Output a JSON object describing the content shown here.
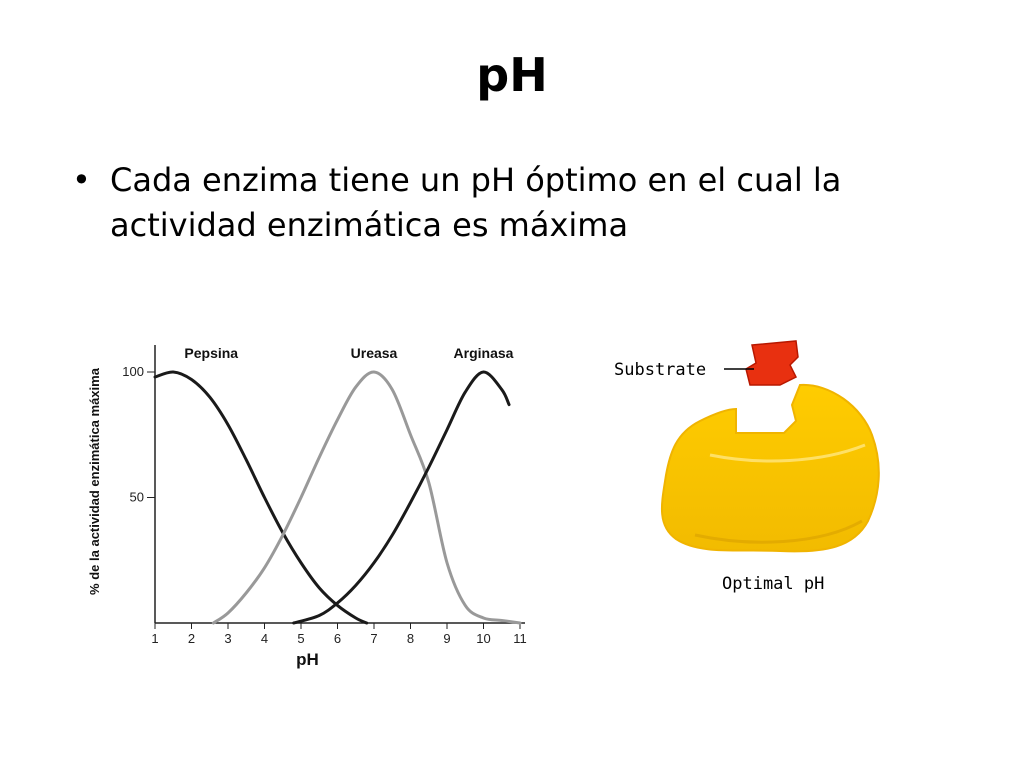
{
  "slide": {
    "title": "pH",
    "bullet_symbol": "•",
    "bullet_text": "Cada enzima tiene un pH óptimo en el cual la actividad enzimática es máxima"
  },
  "chart_data": {
    "type": "line",
    "xlabel": "pH",
    "ylabel": "% de la actividad enzimática máxima",
    "x_ticks": [
      1,
      2,
      3,
      4,
      5,
      6,
      7,
      8,
      9,
      10,
      11
    ],
    "y_ticks": [
      50,
      100
    ],
    "xlim": [
      1,
      11
    ],
    "ylim": [
      0,
      100
    ],
    "grid": false,
    "series": [
      {
        "name": "Pepsina",
        "color": "#1a1a1a",
        "x": [
          1.0,
          1.5,
          2.0,
          2.5,
          3.0,
          3.5,
          4.0,
          4.5,
          5.0,
          5.5,
          6.0,
          6.5,
          6.8
        ],
        "y": [
          98,
          100,
          97,
          90,
          79,
          65,
          50,
          36,
          24,
          14,
          7,
          2,
          0
        ]
      },
      {
        "name": "Ureasa",
        "color": "#999999",
        "x": [
          2.6,
          3.0,
          3.5,
          4.0,
          4.5,
          5.0,
          5.5,
          6.0,
          6.5,
          7.0,
          7.5,
          8.0,
          8.5,
          9.0,
          9.5,
          10.0,
          10.5,
          11.0
        ],
        "y": [
          0,
          4,
          12,
          22,
          35,
          50,
          66,
          81,
          94,
          100,
          93,
          75,
          56,
          24,
          7,
          2,
          1,
          0
        ]
      },
      {
        "name": "Arginasa",
        "color": "#1a1a1a",
        "x": [
          4.8,
          5.5,
          6.0,
          6.5,
          7.0,
          7.5,
          8.0,
          8.5,
          9.0,
          9.5,
          10.0,
          10.5,
          10.7
        ],
        "y": [
          0,
          3,
          8,
          15,
          24,
          35,
          48,
          62,
          77,
          92,
          100,
          93,
          87
        ]
      }
    ]
  },
  "illustration": {
    "substrate_label": "Substrate",
    "caption": "Optimal pH",
    "enzyme_color": "#ffcc00",
    "enzyme_stroke": "#f0b400",
    "substrate_color": "#e83010"
  }
}
